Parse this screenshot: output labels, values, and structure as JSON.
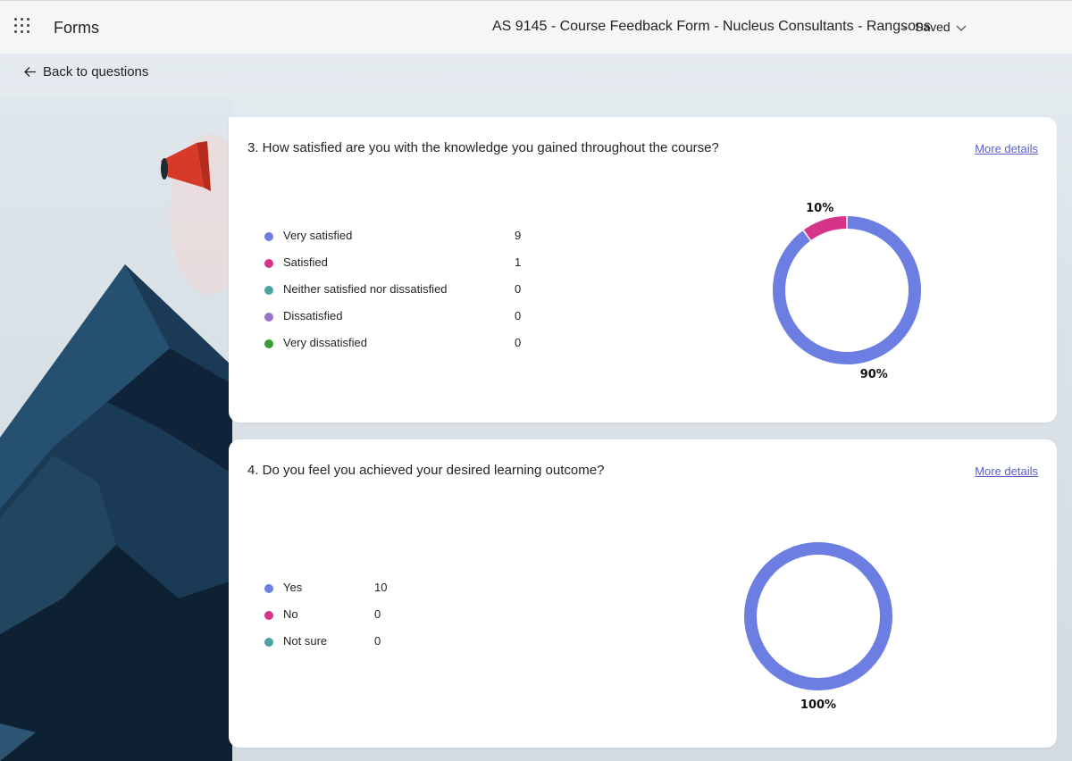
{
  "header": {
    "app_name": "Forms",
    "doc_title": "AS 9145 - Course Feedback Form - Nucleus Consultants - Rangsons",
    "separator": "-",
    "status": "Saved"
  },
  "nav": {
    "back_label": "Back to questions"
  },
  "colors": {
    "very_satisfied": "#6c7ee1",
    "satisfied": "#d6338a",
    "neutral": "#4ba3a3",
    "dissatisfied": "#9a72c7",
    "very_dissatisfied": "#3d9b35",
    "link": "#5b5fc7"
  },
  "questions": [
    {
      "title": "3. How satisfied are you with the knowledge you gained throughout the course?",
      "more_details": "More details",
      "options": [
        {
          "label": "Very satisfied",
          "count": "9",
          "color": "#6c7ee1"
        },
        {
          "label": "Satisfied",
          "count": "1",
          "color": "#d6338a"
        },
        {
          "label": "Neither satisfied nor dissatisfied",
          "count": "0",
          "color": "#4ba3a3"
        },
        {
          "label": "Dissatisfied",
          "count": "0",
          "color": "#9a72c7"
        },
        {
          "label": "Very dissatisfied",
          "count": "0",
          "color": "#3d9b35"
        }
      ],
      "slice_labels": [
        "90%",
        "10%"
      ]
    },
    {
      "title": "4. Do you feel you achieved your desired learning outcome?",
      "more_details": "More details",
      "options": [
        {
          "label": "Yes",
          "count": "10",
          "color": "#6c7ee1"
        },
        {
          "label": "No",
          "count": "0",
          "color": "#d6338a"
        },
        {
          "label": "Not sure",
          "count": "0",
          "color": "#4ba3a3"
        }
      ],
      "slice_labels": [
        "100%"
      ]
    }
  ],
  "chart_data": [
    {
      "type": "pie",
      "title": "3. How satisfied are you with the knowledge you gained throughout the course?",
      "categories": [
        "Very satisfied",
        "Satisfied",
        "Neither satisfied nor dissatisfied",
        "Dissatisfied",
        "Very dissatisfied"
      ],
      "values": [
        9,
        1,
        0,
        0,
        0
      ],
      "labels": [
        "90%",
        "10%"
      ],
      "donut": true
    },
    {
      "type": "pie",
      "title": "4. Do you feel you achieved your desired learning outcome?",
      "categories": [
        "Yes",
        "No",
        "Not sure"
      ],
      "values": [
        10,
        0,
        0
      ],
      "labels": [
        "100%"
      ],
      "donut": true
    }
  ]
}
